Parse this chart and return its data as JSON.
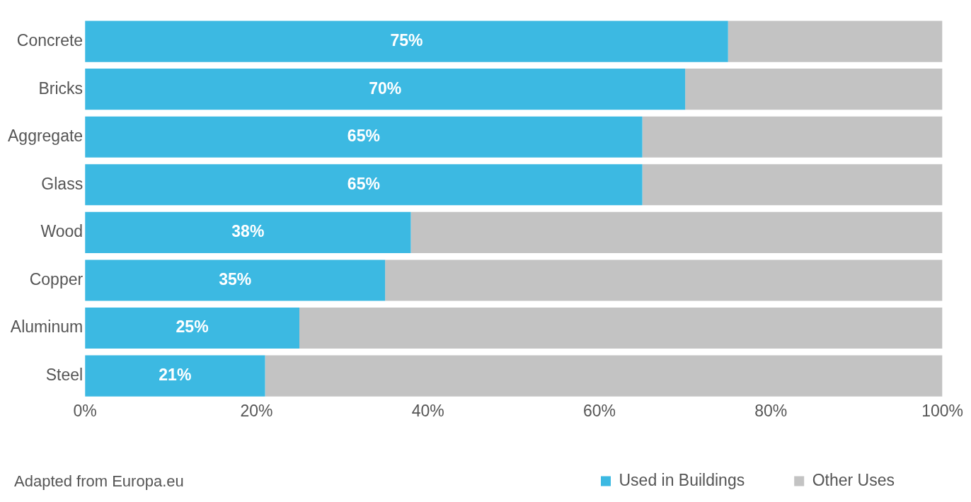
{
  "chart_data": {
    "type": "bar",
    "orientation": "horizontal",
    "stacked": true,
    "categories": [
      "Concrete",
      "Bricks",
      "Aggregate",
      "Glass",
      "Wood",
      "Copper",
      "Aluminum",
      "Steel"
    ],
    "series": [
      {
        "name": "Used in Buildings",
        "color": "#3cb9e2",
        "values": [
          75,
          70,
          65,
          65,
          38,
          35,
          25,
          21
        ],
        "value_labels": [
          "75%",
          "70%",
          "65%",
          "65%",
          "38%",
          "35%",
          "25%",
          "21%"
        ]
      },
      {
        "name": "Other Uses",
        "color": "#c3c3c3",
        "values": [
          25,
          30,
          35,
          35,
          62,
          65,
          75,
          79
        ]
      }
    ],
    "xlim": [
      0,
      100
    ],
    "xticks": [
      {
        "value": 0,
        "label": "0%"
      },
      {
        "value": 20,
        "label": "20%"
      },
      {
        "value": 40,
        "label": "40%"
      },
      {
        "value": 60,
        "label": "60%"
      },
      {
        "value": 80,
        "label": "80%"
      },
      {
        "value": 100,
        "label": "100%"
      }
    ],
    "grid": false,
    "legend": "bottom right",
    "annotations": [
      "Adapted from Europa.eu"
    ]
  }
}
